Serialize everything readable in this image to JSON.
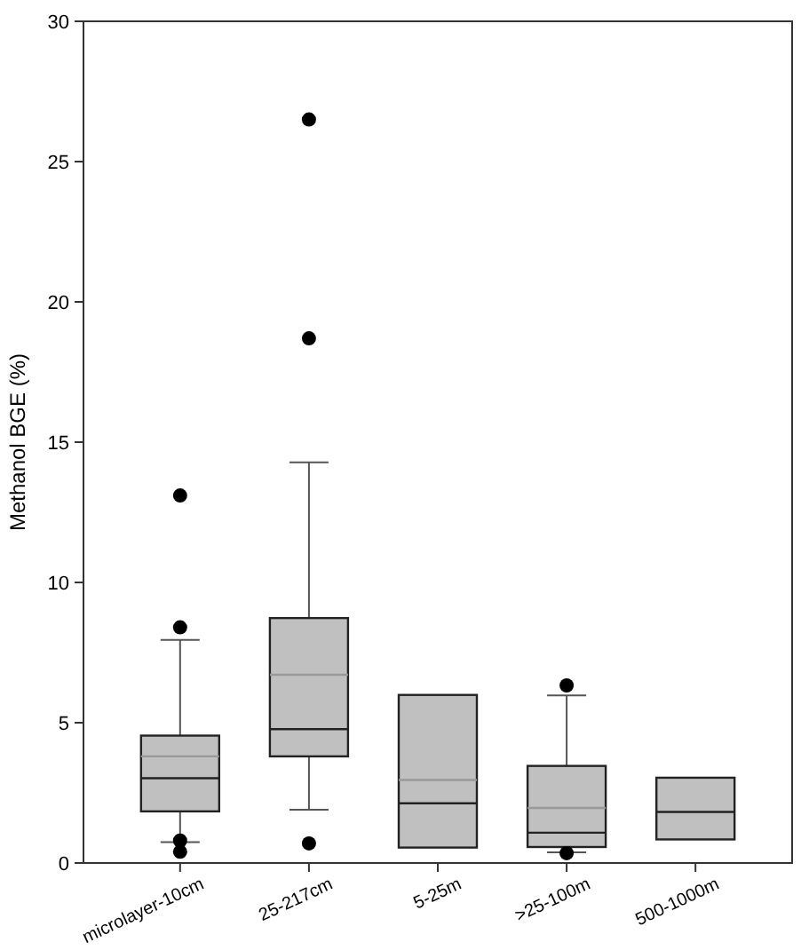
{
  "chart_data": {
    "type": "box",
    "ylabel": "Methanol BGE (%)",
    "categories": [
      "microlayer-10cm",
      "25-217cm",
      "5-25m",
      ">25-100m",
      "500-1000m"
    ],
    "color": "#c0c0c0",
    "ylim": [
      0,
      30
    ],
    "yticks": [
      0,
      5,
      10,
      15,
      20,
      25,
      30
    ],
    "grid": false,
    "boxes": [
      {
        "low": 0.74,
        "q1": 1.84,
        "median": 3.02,
        "q3": 4.54,
        "high": 7.95,
        "mean": 3.8,
        "outliers": [
          13.1,
          8.4,
          0.8,
          0.4
        ]
      },
      {
        "low": 1.9,
        "q1": 3.8,
        "median": 4.77,
        "q3": 8.73,
        "high": 14.28,
        "mean": 6.71,
        "outliers": [
          26.5,
          18.7,
          0.7
        ]
      },
      {
        "low": 0.55,
        "q1": 0.55,
        "median": 2.13,
        "q3": 5.99,
        "high": 5.99,
        "mean": 2.96
      },
      {
        "low": 0.38,
        "q1": 0.57,
        "median": 1.08,
        "q3": 3.46,
        "high": 5.97,
        "mean": 1.96,
        "outliers": [
          6.33,
          0.35
        ]
      },
      {
        "low": 0.84,
        "q1": 0.84,
        "median": 1.82,
        "q3": 3.04,
        "high": 3.04
      }
    ]
  }
}
